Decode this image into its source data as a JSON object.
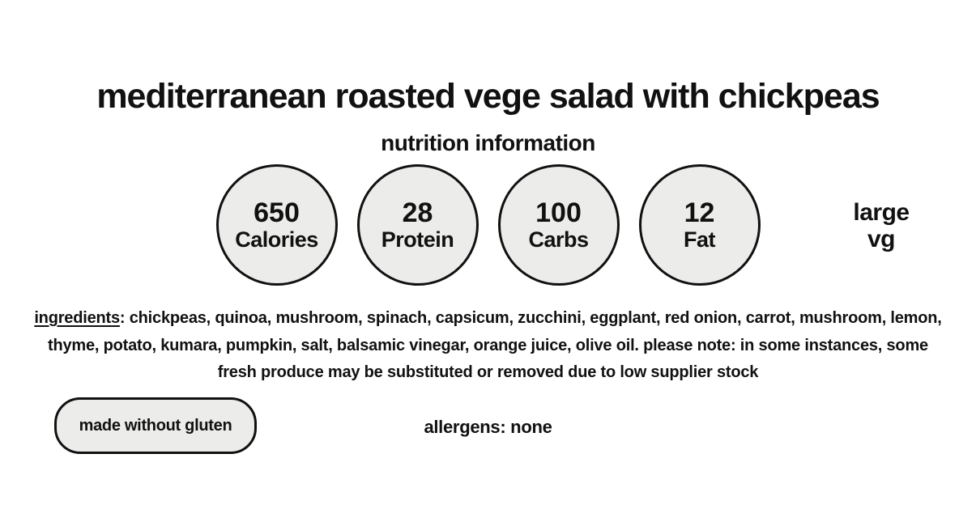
{
  "page": {
    "title": "mediterranean roasted vege salad with chickpeas",
    "subtitle": "nutrition information"
  },
  "nutrition": {
    "items": [
      {
        "value": "650",
        "label": "Calories"
      },
      {
        "value": "28",
        "label": "Protein"
      },
      {
        "value": "100",
        "label": "Carbs"
      },
      {
        "value": "12",
        "label": "Fat"
      }
    ],
    "size_label": "large",
    "diet_code": "vg"
  },
  "ingredients": {
    "heading": "ingredients",
    "text": ": chickpeas, quinoa, mushroom, spinach, capsicum, zucchini, eggplant, red onion, carrot, mushroom, lemon, thyme, potato, kumara, pumpkin, salt, balsamic vinegar, orange juice, olive oil. please note: in some instances, some fresh produce may be substituted or removed due to low supplier stock"
  },
  "footer": {
    "gluten_badge": "made without gluten",
    "allergens": "allergens: none"
  },
  "colors": {
    "background": "#ffffff",
    "text": "#111111",
    "circle_fill": "#ececea",
    "circle_border": "#111111"
  }
}
